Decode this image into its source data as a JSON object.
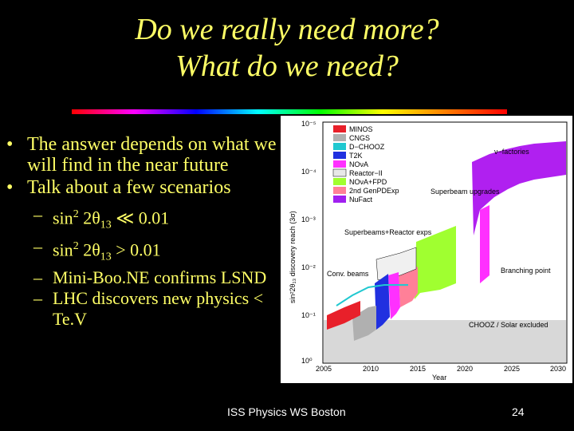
{
  "title": {
    "line1": "Do we really need more?",
    "line2": "What do we need?"
  },
  "bullets": [
    {
      "marker": "•",
      "text": "The answer depends on what we will find in the near future"
    },
    {
      "marker": "•",
      "text": "Talk about a few scenarios"
    }
  ],
  "subbullets": [
    {
      "marker": "–",
      "pre": "sin",
      "sup": "2",
      "mid": " 2θ",
      "sub": "13",
      "post": " ≪ 0.01"
    },
    {
      "marker": "–",
      "pre": "sin",
      "sup": "2",
      "mid": " 2θ",
      "sub": "13",
      "post": " > 0.01"
    },
    {
      "marker": "–",
      "pre": "Mini-Boo.NE confirms LSND",
      "sup": "",
      "mid": "",
      "sub": "",
      "post": ""
    },
    {
      "marker": "–",
      "pre": "LHC discovers new physics < Te.V",
      "sup": "",
      "mid": "",
      "sub": "",
      "post": ""
    }
  ],
  "figure": {
    "ylabel": "sin²2θ₁₃ discovery reach (3σ)",
    "xlabel": "Year",
    "y_ticks": [
      "10⁻⁵",
      "10⁻⁴",
      "10⁻³",
      "10⁻²",
      "10⁻¹",
      "10⁰"
    ],
    "x_ticks": [
      "2005",
      "2010",
      "2015",
      "2020",
      "2025",
      "2030"
    ],
    "legend": [
      {
        "label": "MINOS",
        "color": "#e8202a"
      },
      {
        "label": "CNGS",
        "color": "#b0b0b0"
      },
      {
        "label": "D−CHOOZ",
        "color": "#20c8d0"
      },
      {
        "label": "T2K",
        "color": "#2030e0"
      },
      {
        "label": "NOνA",
        "color": "#ff30ff"
      },
      {
        "label": "Reactor−II",
        "color": "#e8e8e8"
      },
      {
        "label": "NOνA+FPD",
        "color": "#a0ff30"
      },
      {
        "label": "2nd GenPDExp",
        "color": "#ff8098"
      },
      {
        "label": "NuFact",
        "color": "#a020f0"
      }
    ],
    "annotations": {
      "nufact": "ν−factories",
      "superbeam": "Superbeam upgrades",
      "reactor": "Superbeams+Reactor exps",
      "conv": "Conv. beams",
      "branching": "Branching point",
      "chooz": "CHOOZ / Solar excluded"
    }
  },
  "footer": "ISS Physics WS Boston",
  "page_number": "24"
}
